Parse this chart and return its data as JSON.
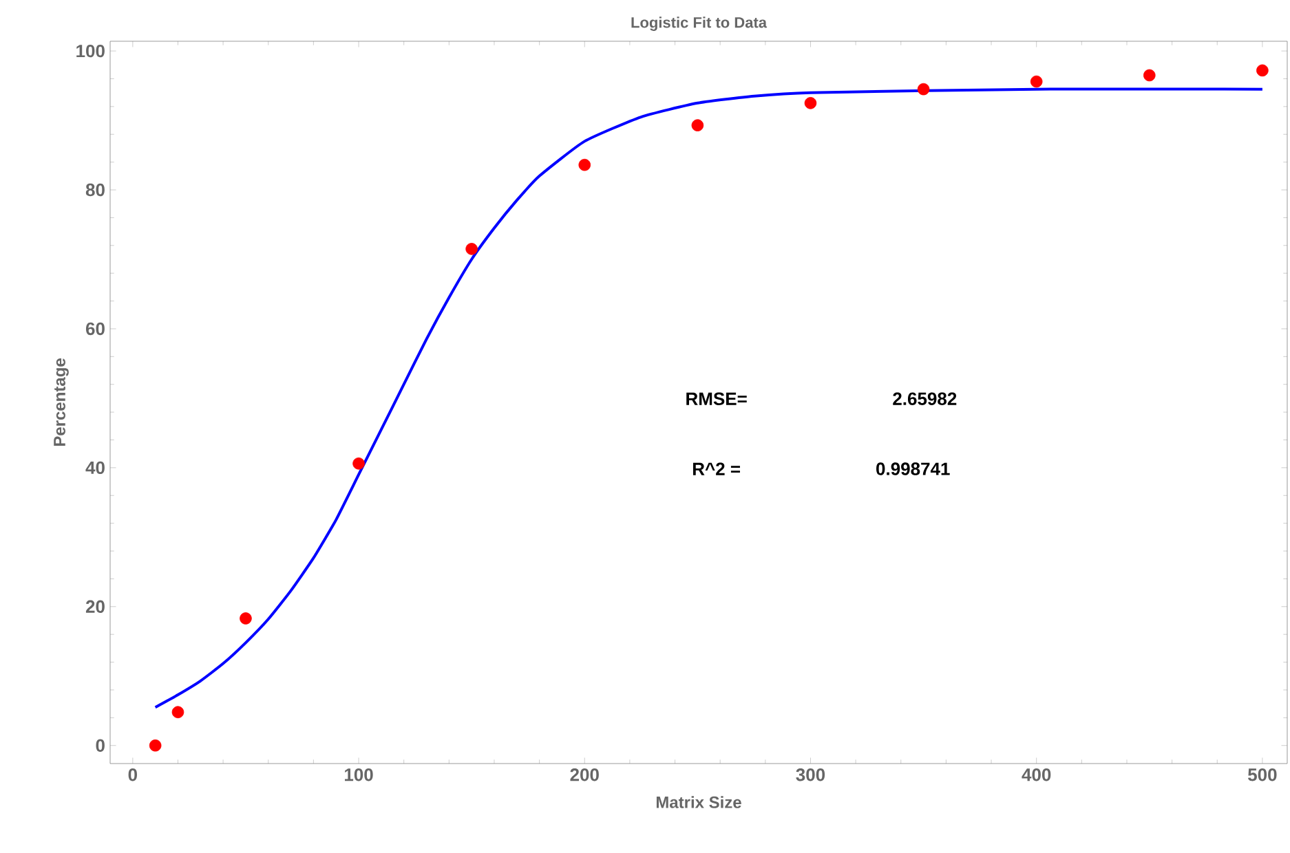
{
  "chart_data": {
    "type": "scatter",
    "title": "Logistic Fit to Data",
    "xlabel": "Matrix Size",
    "ylabel": "Percentage",
    "xlim": [
      -10,
      511
    ],
    "ylim": [
      -2.6,
      101.4
    ],
    "xticks": [
      0,
      100,
      200,
      300,
      400,
      500
    ],
    "yticks": [
      0,
      20,
      40,
      60,
      80,
      100
    ],
    "grid": false,
    "annotations": [
      "RMSE=",
      "2.65982",
      "R^2 =",
      "0.998741"
    ],
    "series": [
      {
        "color": "#ff0000",
        "marker": "circle",
        "x": [
          10,
          20,
          50,
          100,
          150,
          200,
          250,
          300,
          350,
          400,
          450,
          500
        ],
        "values": [
          0,
          4.8,
          18.3,
          40.6,
          71.5,
          83.6,
          89.3,
          92.5,
          94.5,
          95.6,
          96.5,
          97.2
        ]
      },
      {
        "type": "line",
        "color": "#0000ff",
        "marker": "none",
        "line_style": "solid",
        "x": [
          10,
          20,
          30,
          40,
          50,
          60,
          70,
          80,
          90,
          100,
          110,
          120,
          130,
          140,
          150,
          160,
          170,
          180,
          200,
          225,
          250,
          275,
          300,
          400,
          500
        ],
        "values": [
          5.5,
          7.3,
          9.3,
          11.8,
          14.8,
          18.2,
          22.3,
          27,
          32.5,
          39,
          45.5,
          52,
          58.5,
          64.5,
          70,
          74.5,
          78.5,
          82,
          87,
          90.5,
          92.5,
          93.5,
          94,
          94.5,
          94.5
        ]
      }
    ]
  }
}
